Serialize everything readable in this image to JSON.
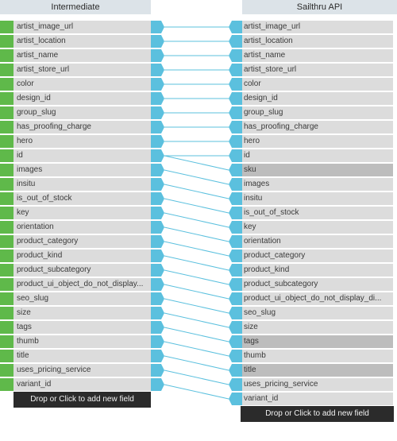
{
  "colors": {
    "header_bg": "#dce3e8",
    "row_bg": "#dcdcdc",
    "row_highlight_bg": "#bdbdbd",
    "left_marker": "#5fb94a",
    "connector": "#5bc0de",
    "button_bg": "#2b2b2b"
  },
  "left": {
    "title": "Intermediate",
    "add_label": "Drop or Click to add new field",
    "fields": [
      "artist_image_url",
      "artist_location",
      "artist_name",
      "artist_store_url",
      "color",
      "design_id",
      "group_slug",
      "has_proofing_charge",
      "hero",
      "id",
      "images",
      "insitu",
      "is_out_of_stock",
      "key",
      "orientation",
      "product_category",
      "product_kind",
      "product_subcategory",
      "product_ui_object_do_not_display...",
      "seo_slug",
      "size",
      "tags",
      "thumb",
      "title",
      "uses_pricing_service",
      "variant_id"
    ]
  },
  "right": {
    "title": "Sailthru API",
    "add_label": "Drop or Click to add new field",
    "fields": [
      {
        "label": "artist_image_url",
        "highlight": false
      },
      {
        "label": "artist_location",
        "highlight": false
      },
      {
        "label": "artist_name",
        "highlight": false
      },
      {
        "label": "artist_store_url",
        "highlight": false
      },
      {
        "label": "color",
        "highlight": false
      },
      {
        "label": "design_id",
        "highlight": false
      },
      {
        "label": "group_slug",
        "highlight": false
      },
      {
        "label": "has_proofing_charge",
        "highlight": false
      },
      {
        "label": "hero",
        "highlight": false
      },
      {
        "label": "id",
        "highlight": false
      },
      {
        "label": "sku",
        "highlight": true
      },
      {
        "label": "images",
        "highlight": false
      },
      {
        "label": "insitu",
        "highlight": false
      },
      {
        "label": "is_out_of_stock",
        "highlight": false
      },
      {
        "label": "key",
        "highlight": false
      },
      {
        "label": "orientation",
        "highlight": false
      },
      {
        "label": "product_category",
        "highlight": false
      },
      {
        "label": "product_kind",
        "highlight": false
      },
      {
        "label": "product_subcategory",
        "highlight": false
      },
      {
        "label": "product_ui_object_do_not_display_di...",
        "highlight": false
      },
      {
        "label": "seo_slug",
        "highlight": false
      },
      {
        "label": "size",
        "highlight": false
      },
      {
        "label": "tags",
        "highlight": true
      },
      {
        "label": "thumb",
        "highlight": false
      },
      {
        "label": "title",
        "highlight": true
      },
      {
        "label": "uses_pricing_service",
        "highlight": false
      },
      {
        "label": "variant_id",
        "highlight": false
      }
    ]
  },
  "links": [
    [
      0,
      0
    ],
    [
      1,
      1
    ],
    [
      2,
      2
    ],
    [
      3,
      3
    ],
    [
      4,
      4
    ],
    [
      5,
      5
    ],
    [
      6,
      6
    ],
    [
      7,
      7
    ],
    [
      8,
      8
    ],
    [
      9,
      9
    ],
    [
      9,
      10
    ],
    [
      10,
      11
    ],
    [
      11,
      12
    ],
    [
      12,
      13
    ],
    [
      13,
      14
    ],
    [
      14,
      15
    ],
    [
      15,
      16
    ],
    [
      16,
      17
    ],
    [
      17,
      18
    ],
    [
      18,
      19
    ],
    [
      19,
      20
    ],
    [
      20,
      21
    ],
    [
      21,
      22
    ],
    [
      22,
      23
    ],
    [
      23,
      24
    ],
    [
      24,
      25
    ],
    [
      25,
      26
    ]
  ]
}
